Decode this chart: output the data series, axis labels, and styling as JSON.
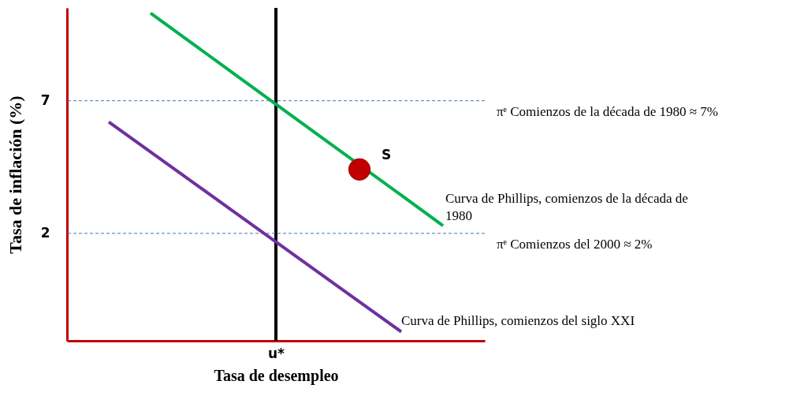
{
  "chart_data": {
    "type": "line",
    "xlabel": "Tasa de desempleo",
    "ylabel": "Tasa de inflación (%)",
    "categories": [
      null,
      null,
      null,
      null,
      null,
      "u*",
      null,
      null,
      null,
      null,
      null
    ],
    "ylim": [
      -2.05,
      10.5
    ],
    "yticks": [
      2,
      7
    ],
    "series": [
      {
        "color": "#00b050",
        "values": [
          null,
          null,
          10.3,
          9.16,
          8.01,
          6.87,
          5.72,
          null,
          3.44,
          2.29,
          null
        ]
      },
      {
        "color": "#7030a0",
        "values": [
          null,
          6.2,
          5.07,
          3.94,
          2.81,
          1.68,
          0.55,
          -0.58,
          -1.71,
          null,
          null
        ]
      },
      {
        "type": "scatter",
        "name": "S",
        "color": "#c00000",
        "marker": "circle",
        "values": [
          null,
          null,
          null,
          null,
          null,
          null,
          null,
          4.41,
          null,
          null,
          null
        ]
      }
    ],
    "ref_lines": [
      {
        "axis": "x",
        "value": "u*",
        "color": "#000000",
        "line_style": "solid"
      },
      {
        "axis": "y",
        "value": 7,
        "color": "#4472c4",
        "line_style": "dashed"
      },
      {
        "axis": "y",
        "value": 2,
        "color": "#4472c4",
        "line_style": "dashed"
      }
    ],
    "annotations": [
      "πᵉ Comienzos de la década de 1980 ≈ 7%",
      "Curva de Phillips, comienzos de la década de 1980",
      "πᵉ Comienzos del 2000 ≈ 2%",
      "Curva de Phillips, comienzos del siglo XXI"
    ],
    "line_style": "solid",
    "grid": false
  }
}
